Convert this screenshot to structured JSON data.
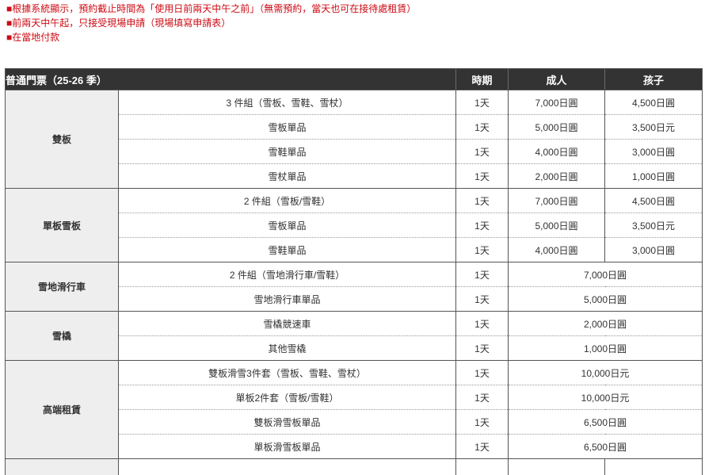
{
  "notes": [
    "■根據系統顯示，預約截止時間為「使用日前兩天中午之前」（無需預約，當天也可在接待處租賃）",
    "■前兩天中午起，只接受現場申請（現場填寫申請表）",
    "■在當地付款"
  ],
  "table": {
    "title": "普通門票（25-26 季）",
    "columns": {
      "period": "時期",
      "adult": "成人",
      "child": "孩子"
    },
    "groups": [
      {
        "category": "雙板",
        "rows": [
          {
            "item": "3 件組（雪板、雪鞋、雪杖）",
            "period": "1天",
            "adult": "7,000日圓",
            "child": "4,500日圓"
          },
          {
            "item": "雪板單品",
            "period": "1天",
            "adult": "5,000日圓",
            "child": "3,500日元"
          },
          {
            "item": "雪鞋單品",
            "period": "1天",
            "adult": "4,000日圓",
            "child": "3,000日圓"
          },
          {
            "item": "雪杖單品",
            "period": "1天",
            "adult": "2,000日圓",
            "child": "1,000日圓"
          }
        ]
      },
      {
        "category": "單板雪板",
        "rows": [
          {
            "item": "2 件組（雪板/雪鞋）",
            "period": "1天",
            "adult": "7,000日圓",
            "child": "4,500日圓"
          },
          {
            "item": "雪板單品",
            "period": "1天",
            "adult": "5,000日圓",
            "child": "3,500日元"
          },
          {
            "item": "雪鞋單品",
            "period": "1天",
            "adult": "4,000日圓",
            "child": "3,000日圓"
          }
        ]
      },
      {
        "category": "雪地滑行車",
        "rows": [
          {
            "item": "2 件組（雪地滑行車/雪鞋）",
            "period": "1天",
            "merged_price": "7,000日圓"
          },
          {
            "item": "雪地滑行車單品",
            "period": "1天",
            "merged_price": "5,000日圓"
          }
        ]
      },
      {
        "category": "雪橇",
        "rows": [
          {
            "item": "雪橇競速車",
            "period": "1天",
            "merged_price": "2,000日圓"
          },
          {
            "item": "其他雪橇",
            "period": "1天",
            "merged_price": "1,000日圓"
          }
        ]
      },
      {
        "category": "高端租賃",
        "rows": [
          {
            "item": "雙板滑雪3件套（雪板、雪鞋、雪杖）",
            "period": "1天",
            "merged_price": "10,000日元"
          },
          {
            "item": "單板2件套（雪板/雪鞋）",
            "period": "1天",
            "merged_price": "10,000日元"
          },
          {
            "item": "雙板滑雪板單品",
            "period": "1天",
            "merged_price": "6,500日圓"
          },
          {
            "item": "單板滑雪板單品",
            "period": "1天",
            "merged_price": "6,500日圓"
          }
        ]
      },
      {
        "category": "",
        "partial": true,
        "rows": [
          {
            "item": "",
            "period": "",
            "adult": "",
            "child": ""
          }
        ]
      }
    ]
  },
  "colors": {
    "note_red": "#cc0b14",
    "header_bg": "#333333",
    "header_text": "#ffffff",
    "body_text": "#333333",
    "category_bg": "#eeeeee",
    "border_solid": "#555555",
    "border_dotted": "#999999"
  }
}
